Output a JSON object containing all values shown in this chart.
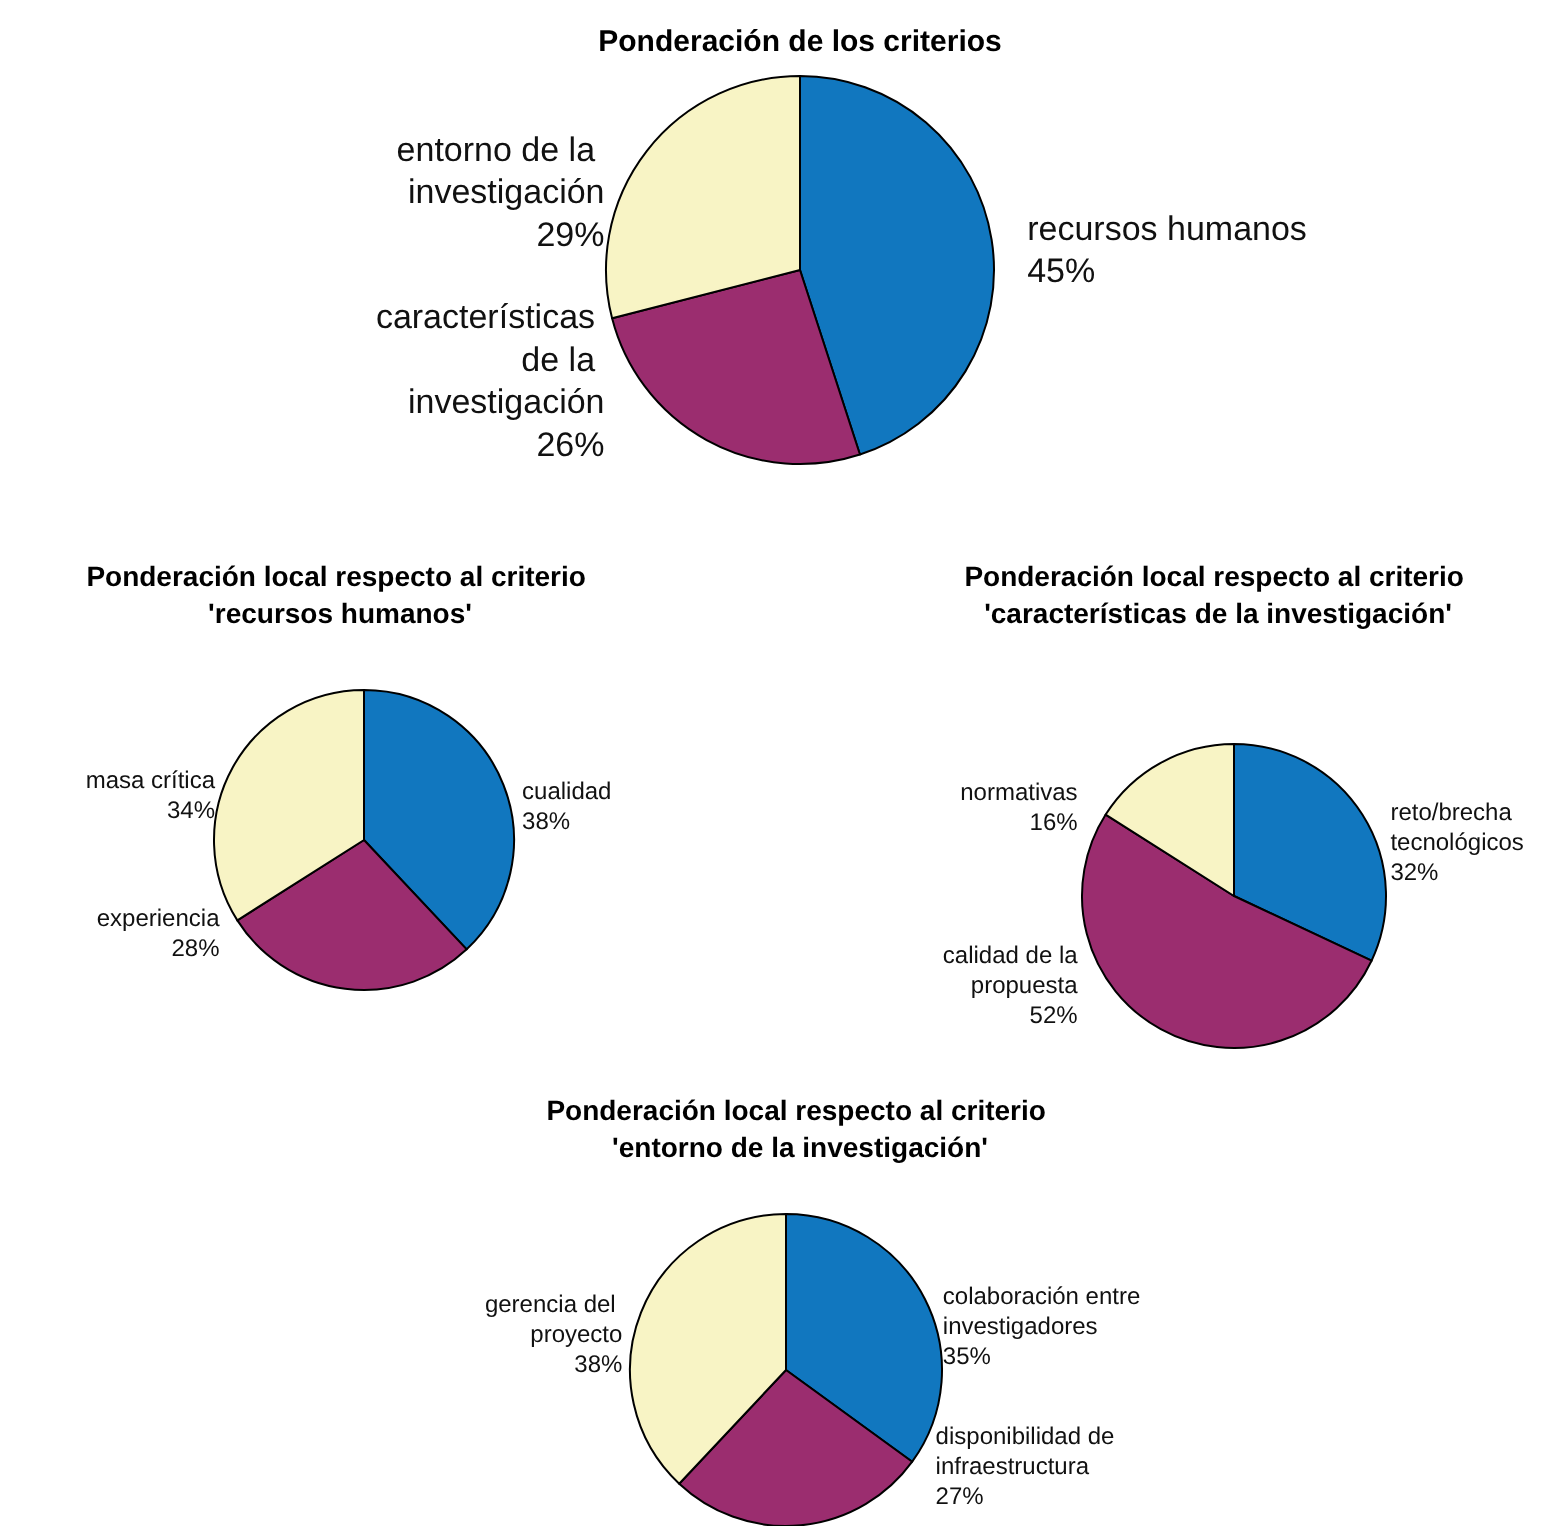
{
  "chart_data": [
    {
      "type": "pie",
      "title": "Ponderación de los criterios",
      "categories": [
        "recursos humanos",
        "características de la investigación",
        "entorno de la investigación"
      ],
      "values": [
        45,
        26,
        29
      ],
      "value_labels": [
        "45%",
        "26%",
        "29%"
      ],
      "colors": [
        "#1177bf",
        "#9b2d6f",
        "#f8f4c5"
      ]
    },
    {
      "type": "pie",
      "title": "Ponderación local respecto al criterio 'recursos humanos'",
      "categories": [
        "cualidad",
        "experiencia",
        "masa crítica"
      ],
      "values": [
        38,
        28,
        34
      ],
      "value_labels": [
        "38%",
        "28%",
        "34%"
      ],
      "colors": [
        "#1177bf",
        "#9b2d6f",
        "#f8f4c5"
      ]
    },
    {
      "type": "pie",
      "title": "Ponderación local respecto al criterio 'características de la investigación'",
      "categories": [
        "reto/brecha tecnológicos",
        "calidad de la propuesta",
        "normativas"
      ],
      "values": [
        32,
        52,
        16
      ],
      "value_labels": [
        "32%",
        "52%",
        "16%"
      ],
      "colors": [
        "#1177bf",
        "#9b2d6f",
        "#f8f4c5"
      ]
    },
    {
      "type": "pie",
      "title": "Ponderación local respecto al criterio 'entorno de la investigación'",
      "categories": [
        "colaboración entre investigadores",
        "disponibilidad de infraestructura",
        "gerencia del proyecto"
      ],
      "values": [
        35,
        27,
        38
      ],
      "value_labels": [
        "35%",
        "27%",
        "38%"
      ],
      "colors": [
        "#1177bf",
        "#9b2d6f",
        "#f8f4c5"
      ]
    }
  ]
}
